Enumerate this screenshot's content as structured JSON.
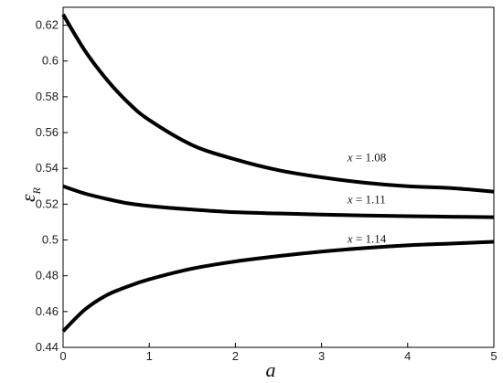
{
  "chart_data": {
    "type": "line",
    "xlabel": "a",
    "ylabel": "ε",
    "ylabel_sub": "R",
    "xlim": [
      0,
      5
    ],
    "ylim": [
      0.44,
      0.63
    ],
    "xticks": [
      {
        "value": 0,
        "label": "0"
      },
      {
        "value": 1,
        "label": "1"
      },
      {
        "value": 2,
        "label": "2"
      },
      {
        "value": 3,
        "label": "3"
      },
      {
        "value": 4,
        "label": "4"
      },
      {
        "value": 5,
        "label": "5"
      }
    ],
    "yticks": [
      {
        "value": 0.44,
        "label": "0.44"
      },
      {
        "value": 0.46,
        "label": "0.46"
      },
      {
        "value": 0.48,
        "label": "0.48"
      },
      {
        "value": 0.5,
        "label": "0.5"
      },
      {
        "value": 0.52,
        "label": "0.52"
      },
      {
        "value": 0.54,
        "label": "0.54"
      },
      {
        "value": 0.56,
        "label": "0.56"
      },
      {
        "value": 0.58,
        "label": "0.58"
      },
      {
        "value": 0.6,
        "label": "0.6"
      },
      {
        "value": 0.62,
        "label": "0.62"
      }
    ],
    "grid": false,
    "legend": "none",
    "series": [
      {
        "annotation_var": "x",
        "annotation_value": "1.08",
        "annotation_at": [
          3.3,
          0.544
        ],
        "color": "#000000",
        "x": [
          0,
          0.25,
          0.5,
          0.75,
          1,
          1.5,
          2,
          2.5,
          3,
          3.5,
          4,
          4.5,
          5
        ],
        "y": [
          0.626,
          0.606,
          0.59,
          0.577,
          0.567,
          0.553,
          0.545,
          0.539,
          0.535,
          0.532,
          0.53,
          0.529,
          0.527
        ]
      },
      {
        "annotation_var": "x",
        "annotation_value": "1.11",
        "annotation_at": [
          3.3,
          0.5205
        ],
        "color": "#000000",
        "x": [
          0,
          0.25,
          0.5,
          0.75,
          1,
          1.5,
          2,
          2.5,
          3,
          3.5,
          4,
          4.5,
          5
        ],
        "y": [
          0.53,
          0.526,
          0.523,
          0.5205,
          0.519,
          0.517,
          0.5155,
          0.5148,
          0.5142,
          0.5137,
          0.5133,
          0.513,
          0.5127
        ]
      },
      {
        "annotation_var": "x",
        "annotation_value": "1.14",
        "annotation_at": [
          3.3,
          0.4985
        ],
        "color": "#000000",
        "x": [
          0,
          0.25,
          0.5,
          0.75,
          1,
          1.5,
          2,
          2.5,
          3,
          3.5,
          4,
          4.5,
          5
        ],
        "y": [
          0.449,
          0.461,
          0.469,
          0.474,
          0.478,
          0.484,
          0.488,
          0.491,
          0.4935,
          0.4955,
          0.497,
          0.498,
          0.499
        ]
      }
    ]
  }
}
